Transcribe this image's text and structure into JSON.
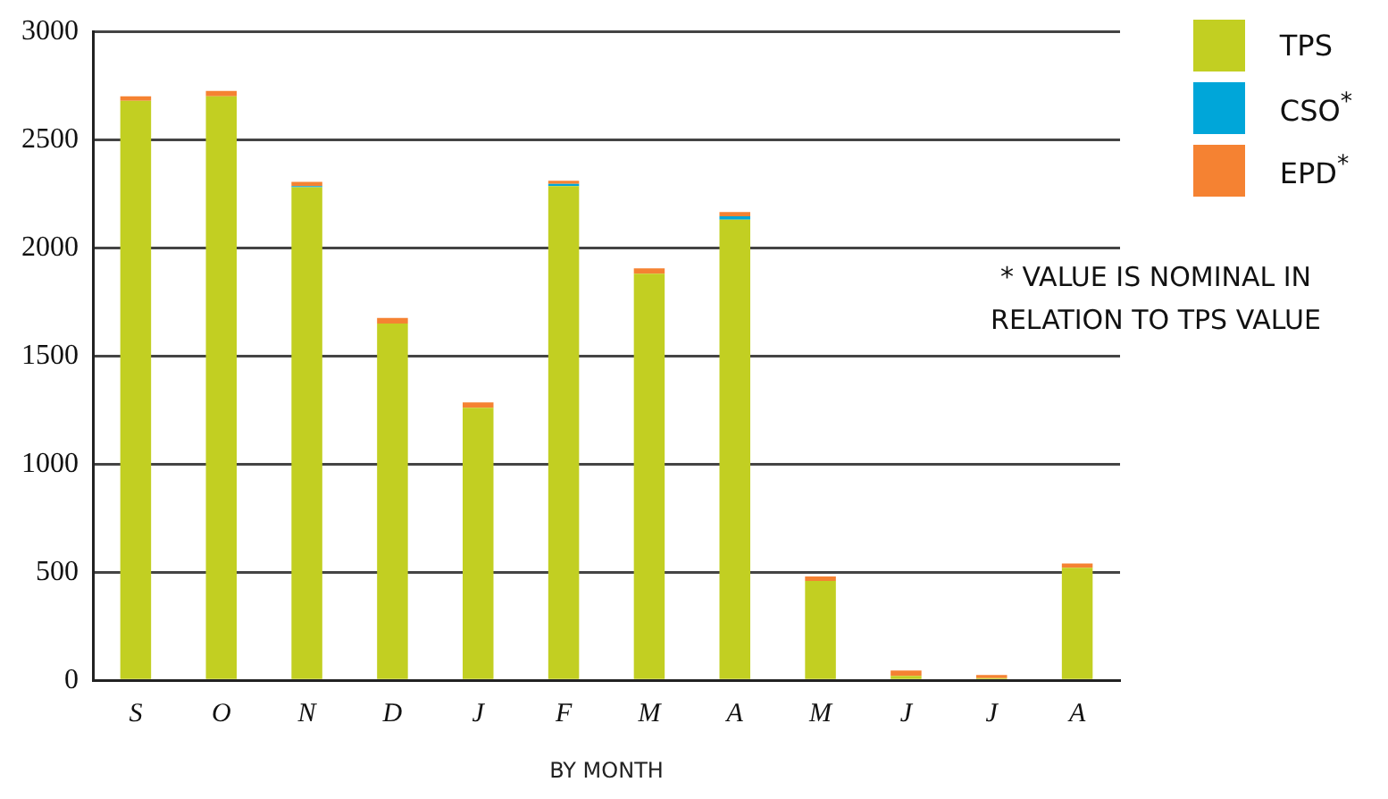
{
  "chart_data": {
    "type": "bar",
    "stacked": true,
    "xlabel": "BY MONTH",
    "categories": [
      "S",
      "O",
      "N",
      "D",
      "J",
      "F",
      "M",
      "A",
      "M",
      "J",
      "J",
      "A"
    ],
    "series": [
      {
        "name": "TPS",
        "color": "#c2cf22",
        "values": [
          2680,
          2700,
          2280,
          1650,
          1260,
          2285,
          1880,
          2130,
          460,
          20,
          10,
          520
        ]
      },
      {
        "name": "CSO$^{*}$",
        "color": "#00a6d9",
        "values": [
          0,
          0,
          5,
          0,
          0,
          10,
          0,
          15,
          0,
          0,
          0,
          0
        ]
      },
      {
        "name": "EPD$^{*}$",
        "color": "#f58232",
        "values": [
          20,
          25,
          20,
          25,
          25,
          15,
          25,
          20,
          20,
          25,
          15,
          20
        ]
      }
    ],
    "ylim": [
      0,
      3000
    ],
    "yticks": [
      0,
      500,
      1000,
      1500,
      2000,
      2500,
      3000
    ],
    "grid": "y",
    "legend": "top right",
    "annotations": [
      "* VALUE IS NOMINAL IN RELATION TO TPS VALUE"
    ]
  }
}
